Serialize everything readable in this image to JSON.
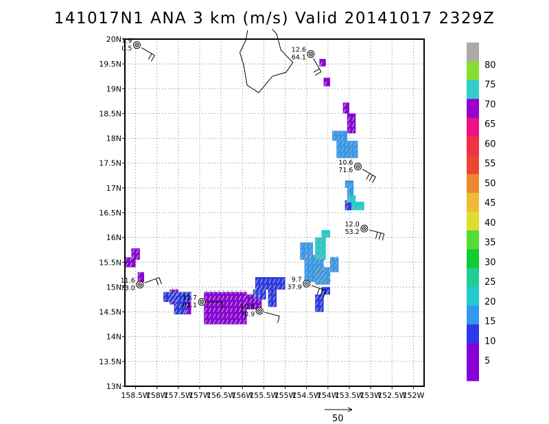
{
  "title": "141017N1 ANA 3 km (m/s) Valid 20141017 2329Z",
  "map": {
    "lat_range": [
      13,
      20
    ],
    "lon_range": [
      -158.75,
      -151.75
    ],
    "lat_ticks": [
      {
        "v": 20,
        "label": "20N"
      },
      {
        "v": 19.5,
        "label": "19.5N"
      },
      {
        "v": 19,
        "label": "19N"
      },
      {
        "v": 18.5,
        "label": "18.5N"
      },
      {
        "v": 18,
        "label": "18N"
      },
      {
        "v": 17.5,
        "label": "17.5N"
      },
      {
        "v": 17,
        "label": "17N"
      },
      {
        "v": 16.5,
        "label": "16.5N"
      },
      {
        "v": 16,
        "label": "16N"
      },
      {
        "v": 15.5,
        "label": "15.5N"
      },
      {
        "v": 15,
        "label": "15N"
      },
      {
        "v": 14.5,
        "label": "14.5N"
      },
      {
        "v": 14,
        "label": "14N"
      },
      {
        "v": 13.5,
        "label": "13.5N"
      },
      {
        "v": 13,
        "label": "13N"
      }
    ],
    "lon_ticks": [
      {
        "v": -158.5,
        "label": "158.5W"
      },
      {
        "v": -158,
        "label": "158W"
      },
      {
        "v": -157.5,
        "label": "157.5W"
      },
      {
        "v": -157,
        "label": "157W"
      },
      {
        "v": -156.5,
        "label": "156.5W"
      },
      {
        "v": -156,
        "label": "156W"
      },
      {
        "v": -155.5,
        "label": "155.5W"
      },
      {
        "v": -155,
        "label": "155W"
      },
      {
        "v": -154.5,
        "label": "154.5W"
      },
      {
        "v": -154,
        "label": "154W"
      },
      {
        "v": -153.5,
        "label": "153.5W"
      },
      {
        "v": -153,
        "label": "153W"
      },
      {
        "v": -152.5,
        "label": "152.5W"
      },
      {
        "v": -152,
        "label": "152W"
      }
    ],
    "island_outline": [
      [
        -155.88,
        20.18
      ],
      [
        -155.92,
        19.98
      ],
      [
        -156.06,
        19.73
      ],
      [
        -155.97,
        19.47
      ],
      [
        -155.89,
        19.07
      ],
      [
        -155.62,
        18.92
      ],
      [
        -155.3,
        19.25
      ],
      [
        -154.98,
        19.33
      ],
      [
        -154.82,
        19.53
      ],
      [
        -155.1,
        19.78
      ],
      [
        -155.2,
        20.1
      ],
      [
        -155.3,
        20.2
      ]
    ]
  },
  "stations": [
    {
      "lat": 19.88,
      "lon": -158.47,
      "top": "1.9",
      "bottom": "0.5",
      "barb_dir": 300,
      "barbs": 2
    },
    {
      "lat": 19.7,
      "lon": -154.4,
      "top": "12.6",
      "bottom": "64.1",
      "barb_dir": 330,
      "barbs": 2
    },
    {
      "lat": 17.43,
      "lon": -153.3,
      "top": "10.6",
      "bottom": "71.6",
      "barb_dir": 300,
      "barbs": 3
    },
    {
      "lat": 16.18,
      "lon": -153.15,
      "top": "12.0",
      "bottom": "53.2",
      "barb_dir": 285,
      "barbs": 3
    },
    {
      "lat": 15.07,
      "lon": -154.5,
      "top": "9.7",
      "bottom": "37.9",
      "barb_dir": 290,
      "barbs": 3
    },
    {
      "lat": 15.05,
      "lon": -158.4,
      "top": "11.6",
      "bottom": "73.0",
      "barb_dir": 250,
      "barbs": 2
    },
    {
      "lat": 14.7,
      "lon": -156.95,
      "top": "11.7",
      "bottom": "81.1",
      "barb_dir": 270,
      "barbs": 1
    },
    {
      "lat": 14.52,
      "lon": -155.6,
      "top": "10.6",
      "bottom": "70.9",
      "barb_dir": 285,
      "barbs": 1
    }
  ],
  "wind_cells": [
    {
      "c": "#8a00d8",
      "r": [
        [
          -158.6,
          -158.4,
          15.55,
          15.78
        ],
        [
          -158.75,
          -158.5,
          15.4,
          15.6
        ],
        [
          -158.45,
          -158.3,
          15.1,
          15.3
        ],
        [
          -157.7,
          -157.5,
          14.65,
          14.95
        ],
        [
          -157.35,
          -157.2,
          14.45,
          14.7
        ],
        [
          -156.9,
          -155.9,
          14.25,
          14.9
        ],
        [
          -155.95,
          -155.55,
          14.55,
          14.85
        ],
        [
          -154.2,
          -154.05,
          19.45,
          19.6
        ],
        [
          -154.1,
          -153.95,
          19.05,
          19.22
        ],
        [
          -153.65,
          -153.5,
          18.5,
          18.72
        ],
        [
          -153.55,
          -153.35,
          18.1,
          18.5
        ],
        [
          -153.6,
          -153.45,
          16.55,
          16.75
        ]
      ]
    },
    {
      "c": "#2a3ae8",
      "r": [
        [
          -157.85,
          -157.2,
          14.7,
          14.9
        ],
        [
          -157.6,
          -157.3,
          14.45,
          14.7
        ],
        [
          -155.75,
          -155.45,
          14.75,
          14.95
        ],
        [
          -155.7,
          -155.0,
          14.95,
          15.2
        ],
        [
          -155.4,
          -155.2,
          14.6,
          14.95
        ],
        [
          -154.3,
          -154.1,
          14.5,
          14.85
        ],
        [
          -154.15,
          -153.95,
          14.85,
          15.0
        ],
        [
          -153.6,
          -153.45,
          16.55,
          16.75
        ]
      ]
    },
    {
      "c": "#3399ee",
      "r": [
        [
          -154.55,
          -154.1,
          15.1,
          15.65
        ],
        [
          -154.65,
          -154.35,
          15.55,
          15.9
        ],
        [
          -154.3,
          -153.95,
          15.05,
          15.4
        ],
        [
          -153.95,
          -153.75,
          15.3,
          15.6
        ],
        [
          -153.9,
          -153.55,
          17.95,
          18.15
        ],
        [
          -153.8,
          -153.3,
          17.6,
          17.95
        ],
        [
          -153.6,
          -153.4,
          17.0,
          17.15
        ],
        [
          -153.55,
          -153.4,
          16.7,
          17.0
        ]
      ]
    },
    {
      "c": "#22cccc",
      "r": [
        [
          -154.3,
          -154.05,
          15.55,
          16.0
        ],
        [
          -154.15,
          -153.95,
          16.0,
          16.15
        ],
        [
          -153.45,
          -153.15,
          16.55,
          16.72
        ],
        [
          -153.55,
          -153.35,
          16.72,
          16.85
        ]
      ]
    }
  ],
  "colorbar": {
    "levels": [
      "5",
      "10",
      "15",
      "20",
      "25",
      "30",
      "35",
      "40",
      "45",
      "50",
      "55",
      "60",
      "65",
      "70",
      "75",
      "80"
    ],
    "colors": [
      "#8800d8",
      "#8800d8",
      "#2a3ae8",
      "#3399ee",
      "#22cccc",
      "#22cc99",
      "#11cc33",
      "#55dd33",
      "#dddd33",
      "#eebb33",
      "#ee8833",
      "#ee4433",
      "#ee3344",
      "#ee1188",
      "#9900cc",
      "#33cccc",
      "#88dd33",
      "#aaaaaa"
    ]
  },
  "scale": {
    "label": "50"
  }
}
